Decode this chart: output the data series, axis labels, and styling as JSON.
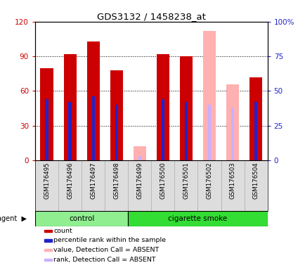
{
  "title": "GDS3132 / 1458238_at",
  "samples": [
    "GSM176495",
    "GSM176496",
    "GSM176497",
    "GSM176498",
    "GSM176499",
    "GSM176500",
    "GSM176501",
    "GSM176502",
    "GSM176503",
    "GSM176504"
  ],
  "count_values": [
    80,
    92,
    103,
    78,
    null,
    92,
    90,
    null,
    null,
    72
  ],
  "percentile_values": [
    44,
    42,
    46,
    40,
    null,
    44,
    42,
    null,
    null,
    42
  ],
  "absent_value_values": [
    null,
    null,
    null,
    null,
    12,
    null,
    null,
    112,
    66,
    null
  ],
  "absent_rank_values": [
    null,
    null,
    null,
    null,
    3,
    null,
    null,
    40,
    38,
    null
  ],
  "ylim_left": [
    0,
    120
  ],
  "ylim_right": [
    0,
    100
  ],
  "left_ticks": [
    0,
    30,
    60,
    90,
    120
  ],
  "right_ticks": [
    0,
    25,
    50,
    75,
    100
  ],
  "left_tick_labels": [
    "0",
    "30",
    "60",
    "90",
    "120"
  ],
  "right_tick_labels": [
    "0",
    "25",
    "50",
    "75",
    "100%"
  ],
  "count_color": "#CC0000",
  "percentile_color": "#2222CC",
  "absent_value_color": "#FFB0B0",
  "absent_rank_color": "#C8B0FF",
  "control_color": "#90EE90",
  "smoke_color": "#33DD33",
  "background_color": "#FFFFFF"
}
